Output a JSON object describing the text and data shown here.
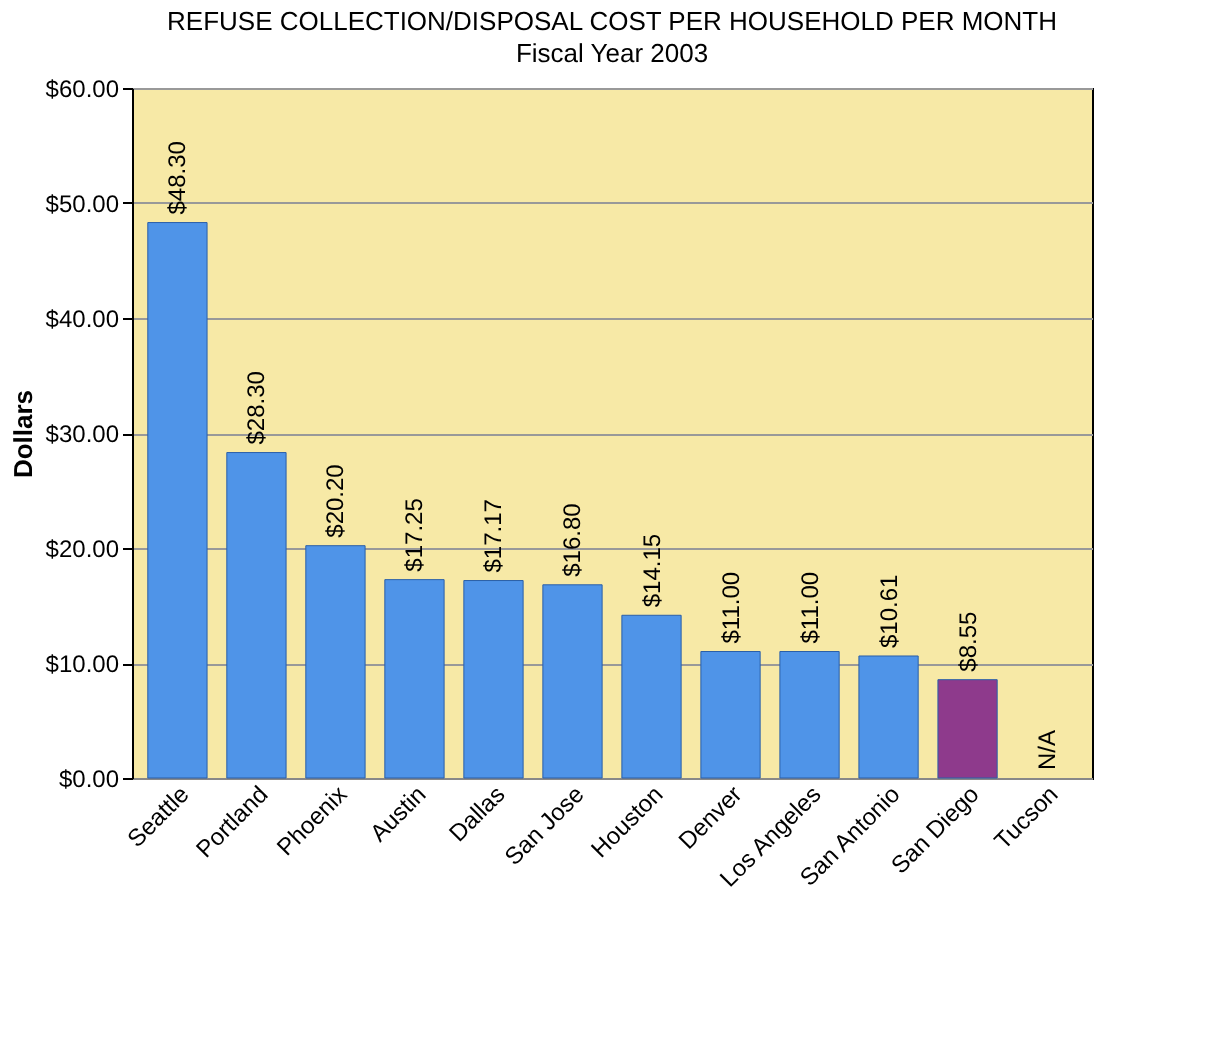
{
  "chart_data": {
    "type": "bar",
    "title": "REFUSE COLLECTION/DISPOSAL COST PER HOUSEHOLD PER MONTH",
    "subtitle": "Fiscal Year 2003",
    "ylabel": "Dollars",
    "categories": [
      "Seattle",
      "Portland",
      "Phoenix",
      "Austin",
      "Dallas",
      "San Jose",
      "Houston",
      "Denver",
      "Los Angeles",
      "San Antonio",
      "San Diego",
      "Tucson"
    ],
    "values": [
      48.3,
      28.3,
      20.2,
      17.25,
      17.17,
      16.8,
      14.15,
      11.0,
      11.0,
      10.61,
      8.55,
      null
    ],
    "colors": [
      "#4f94e8",
      "#4f94e8",
      "#4f94e8",
      "#4f94e8",
      "#4f94e8",
      "#4f94e8",
      "#4f94e8",
      "#4f94e8",
      "#4f94e8",
      "#4f94e8",
      "#8e3a8c",
      "#4f94e8"
    ],
    "value_labels": [
      "$48.30",
      "$28.30",
      "$20.20",
      "$17.25",
      "$17.17",
      "$16.80",
      "$14.15",
      "$11.00",
      "$11.00",
      "$10.61",
      "$8.55",
      "N/A"
    ],
    "ylim": [
      0,
      60
    ],
    "yticks": [
      {
        "value": 0,
        "label": "$0.00"
      },
      {
        "value": 10,
        "label": "$10.00"
      },
      {
        "value": 20,
        "label": "$20.00"
      },
      {
        "value": 30,
        "label": "$30.00"
      },
      {
        "value": 40,
        "label": "$40.00"
      },
      {
        "value": 50,
        "label": "$50.00"
      },
      {
        "value": 60,
        "label": "$60.00"
      }
    ],
    "grid": "y"
  }
}
